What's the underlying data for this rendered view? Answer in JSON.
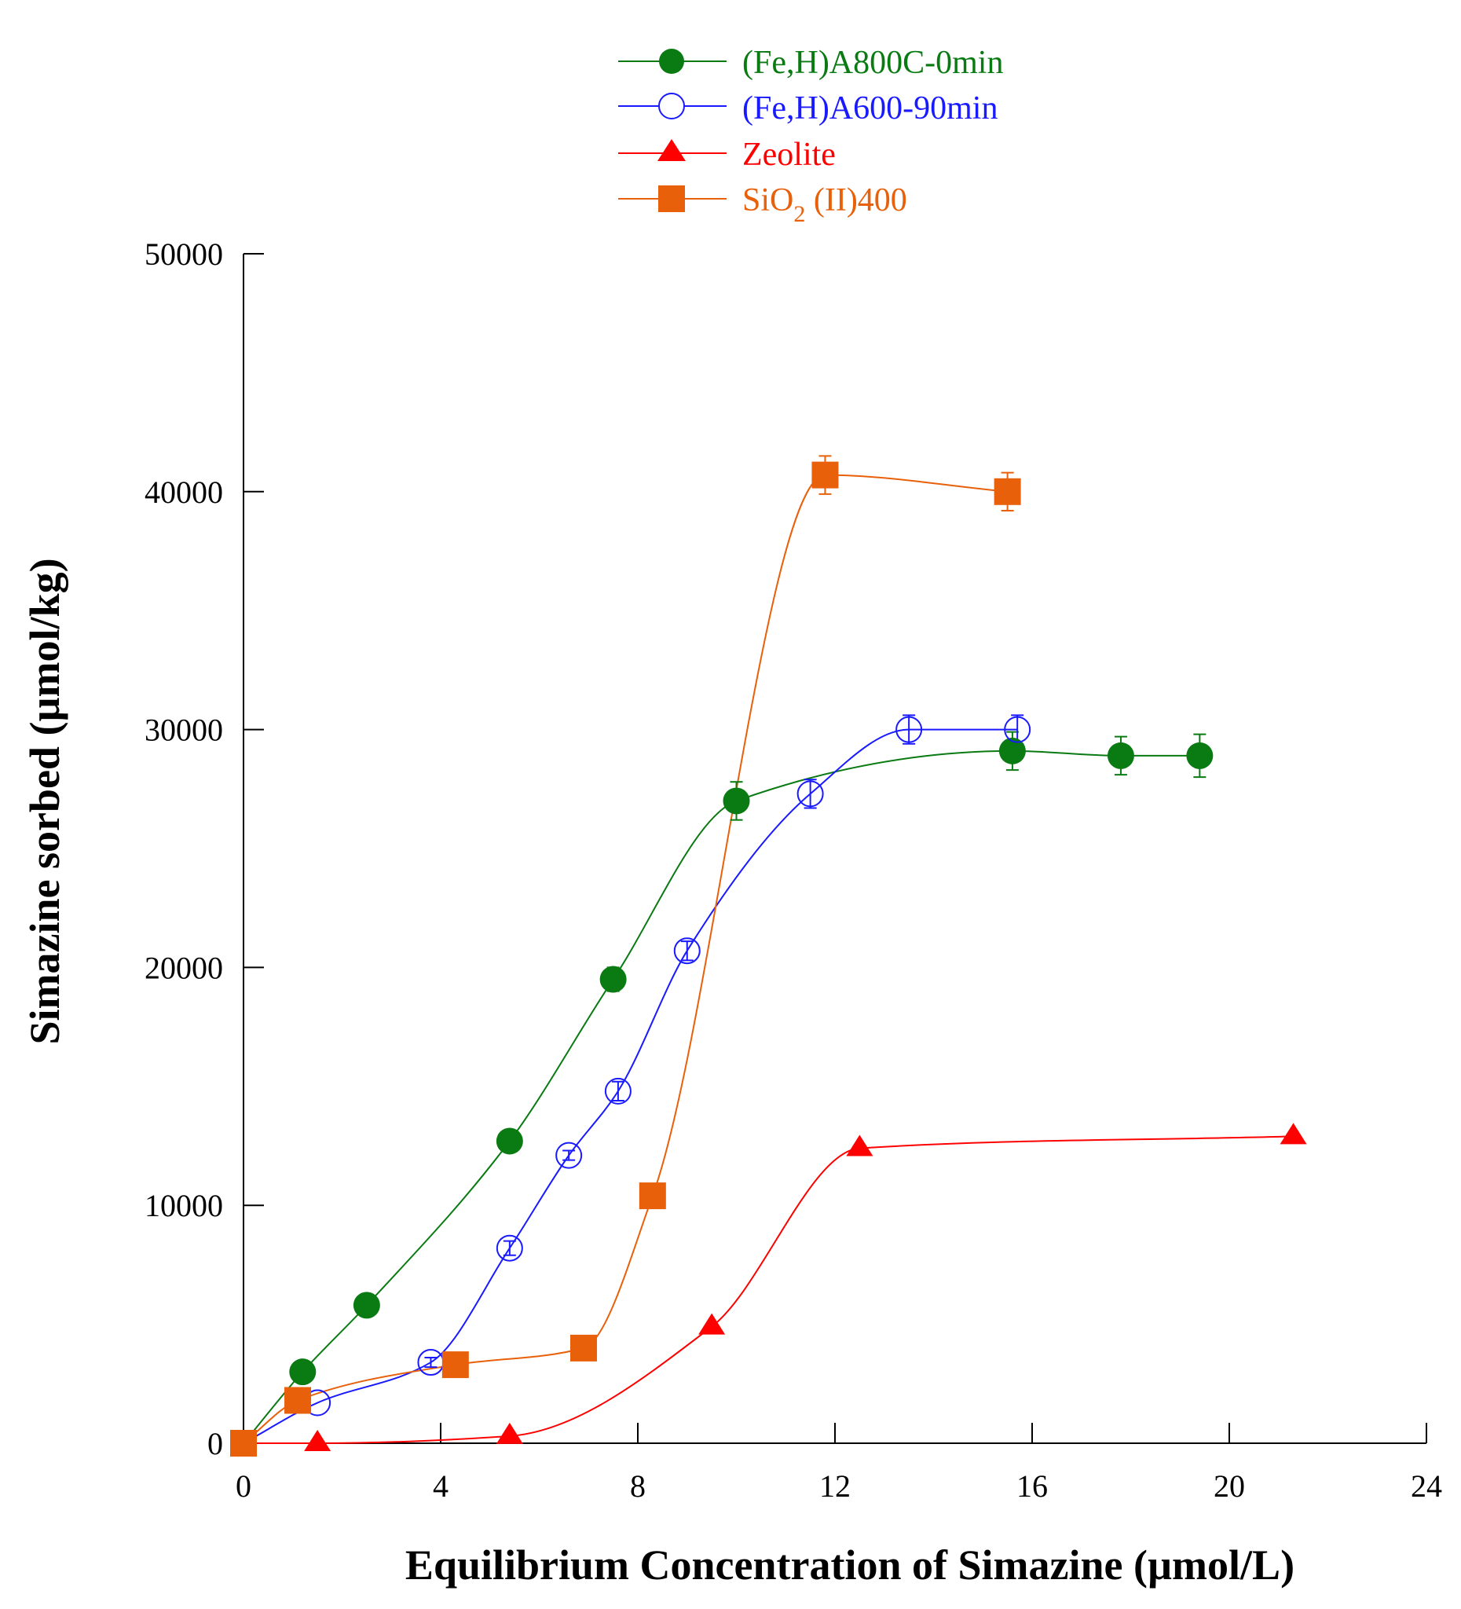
{
  "chart_data": {
    "type": "scatter",
    "title": "",
    "xlabel": "Equilibrium Concentration of Simazine (µmol/L)",
    "ylabel": "Simazine sorbed (µmol/kg)",
    "xlim": [
      0,
      24
    ],
    "ylim": [
      0,
      50000
    ],
    "xticks": [
      0,
      4,
      8,
      12,
      16,
      20,
      24
    ],
    "yticks": [
      0,
      10000,
      20000,
      30000,
      40000,
      50000
    ],
    "xtick_labels": [
      "0",
      "4",
      "8",
      "12",
      "16",
      "20",
      "24"
    ],
    "ytick_labels": [
      "0",
      "10000",
      "20000",
      "30000",
      "40000",
      "50000"
    ],
    "grid": false,
    "legend_position": "top",
    "series": [
      {
        "name": "(Fe,H)A800C-0min",
        "color": "#0a7a12",
        "marker": "filled-circle",
        "x": [
          0,
          1.2,
          2.5,
          5.4,
          7.5,
          10.0,
          15.6,
          17.8,
          19.4
        ],
        "y": [
          0,
          3000,
          5800,
          12700,
          19500,
          27000,
          29100,
          28900,
          28900
        ],
        "err": [
          0,
          0,
          0,
          0,
          500,
          800,
          800,
          800,
          900
        ]
      },
      {
        "name": "(Fe,H)A600-90min",
        "color": "#1a1aff",
        "marker": "open-circle",
        "x": [
          0,
          1.5,
          3.8,
          5.4,
          6.6,
          7.6,
          9.0,
          11.5,
          13.5,
          15.7
        ],
        "y": [
          0,
          1700,
          3400,
          8200,
          12100,
          14800,
          20700,
          27300,
          30000,
          30000
        ],
        "err": [
          0,
          0,
          200,
          300,
          200,
          400,
          400,
          600,
          600,
          600
        ]
      },
      {
        "name": "Zeolite",
        "color": "#ff0000",
        "marker": "filled-triangle",
        "x": [
          0,
          1.5,
          5.4,
          9.5,
          12.5,
          21.3
        ],
        "y": [
          0,
          0,
          300,
          4900,
          12400,
          12900
        ],
        "err": [
          0,
          0,
          0,
          0,
          0,
          0
        ]
      },
      {
        "name": "SiO2 (II)400",
        "label_main": "SiO",
        "label_sub": "2",
        "label_rest": " (II)400",
        "color": "#e8600a",
        "marker": "filled-square",
        "x": [
          0,
          1.1,
          4.3,
          6.9,
          8.3,
          11.8,
          15.5
        ],
        "y": [
          0,
          1800,
          3300,
          4000,
          10400,
          40700,
          40000
        ],
        "err": [
          0,
          0,
          0,
          0,
          0,
          800,
          800
        ]
      }
    ]
  }
}
